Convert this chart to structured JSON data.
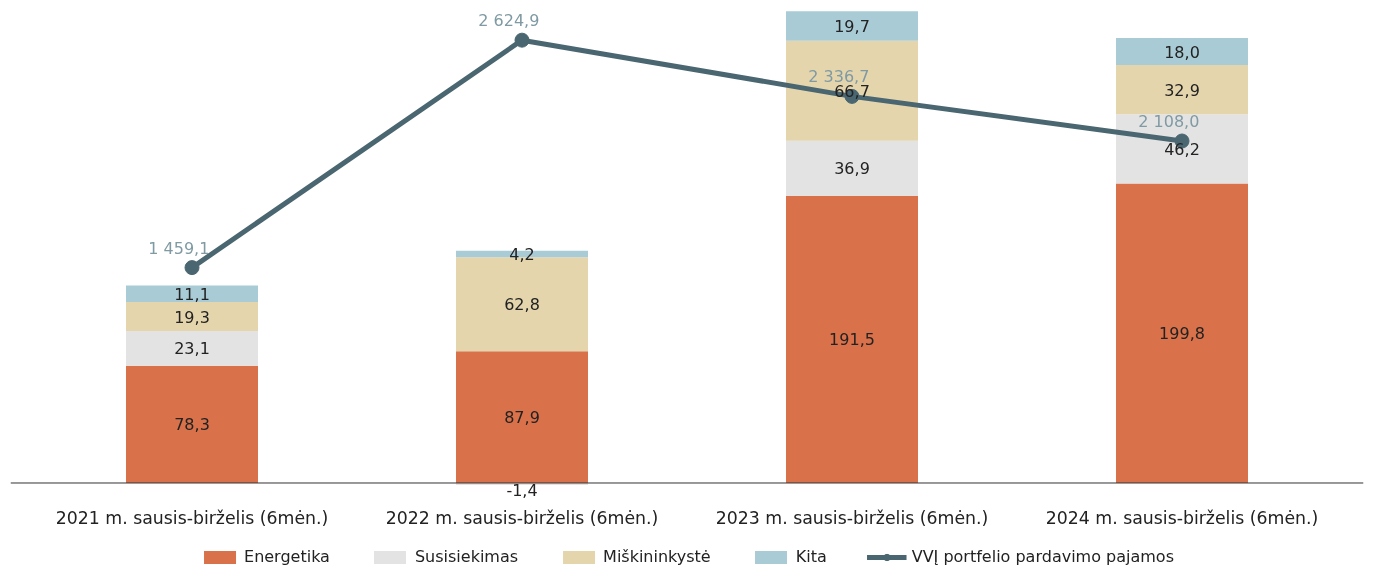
{
  "chart_data": {
    "type": "bar",
    "stacked": true,
    "categories": [
      "2021 m. sausis-birželis (6mėn.)",
      "2022 m. sausis-birželis (6mėn.)",
      "2023 m. sausis-birželis (6mėn.)",
      "2024 m. sausis-birželis (6mėn.)"
    ],
    "tick_labels": "x",
    "legend": "bottom",
    "grid": false,
    "series": [
      {
        "name": "Energetika",
        "color": "#d9714a",
        "values": [
          78.3,
          87.9,
          191.5,
          199.8
        ],
        "value_labels": [
          "78,3",
          "87,9",
          "191,5",
          "199,8"
        ]
      },
      {
        "name": "Susisiekimas",
        "color": "#e3e3e3",
        "values": [
          23.1,
          -1.4,
          36.9,
          46.2
        ],
        "value_labels": [
          "23,1",
          "-1,4",
          "36,9",
          "46,2"
        ]
      },
      {
        "name": "Miškininkystė",
        "color": "#e5d5ad",
        "values": [
          19.3,
          62.8,
          66.7,
          32.9
        ],
        "value_labels": [
          "19,3",
          "62,8",
          "66,7",
          "32,9"
        ]
      },
      {
        "name": "Kita",
        "color": "#a9cbd5",
        "values": [
          11.1,
          4.2,
          19.7,
          18.0
        ],
        "value_labels": [
          "11,1",
          "4,2",
          "19,7",
          "18,0"
        ]
      },
      {
        "name": "VVĮ portfelio pardavimo pajamos",
        "type": "line",
        "axis": "y2",
        "marker": "circle",
        "color": "#4a6670",
        "values": [
          1459.1,
          2624.9,
          2336.7,
          2108.0
        ],
        "value_labels": [
          "1 459,1",
          "2 624,9",
          "2 336,7",
          "2 108,0"
        ]
      }
    ]
  }
}
